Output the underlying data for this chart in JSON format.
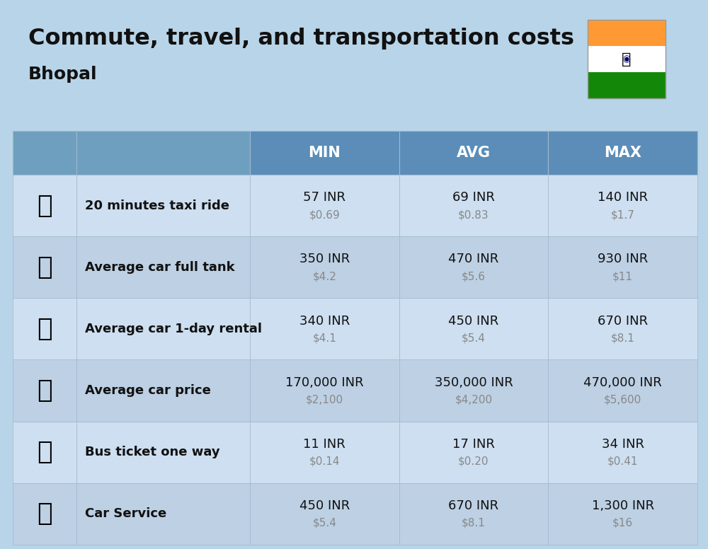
{
  "title": "Commute, travel, and transportation costs",
  "subtitle": "Bhopal",
  "bg_color": "#b8d4e8",
  "header_bg": "#5b8db8",
  "row_bg_even": "#cddff0",
  "row_bg_odd": "#bdd0e4",
  "separator_color": "#a0b8cc",
  "col_headers": [
    "MIN",
    "AVG",
    "MAX"
  ],
  "header_text_color": "#ffffff",
  "label_text_color": "#111111",
  "value_text_color": "#111111",
  "usd_text_color": "#888888",
  "rows": [
    {
      "label": "20 minutes taxi ride",
      "min_inr": "57 INR",
      "min_usd": "$0.69",
      "avg_inr": "69 INR",
      "avg_usd": "$0.83",
      "max_inr": "140 INR",
      "max_usd": "$1.7"
    },
    {
      "label": "Average car full tank",
      "min_inr": "350 INR",
      "min_usd": "$4.2",
      "avg_inr": "470 INR",
      "avg_usd": "$5.6",
      "max_inr": "930 INR",
      "max_usd": "$11"
    },
    {
      "label": "Average car 1-day rental",
      "min_inr": "340 INR",
      "min_usd": "$4.1",
      "avg_inr": "450 INR",
      "avg_usd": "$5.4",
      "max_inr": "670 INR",
      "max_usd": "$8.1"
    },
    {
      "label": "Average car price",
      "min_inr": "170,000 INR",
      "min_usd": "$2,100",
      "avg_inr": "350,000 INR",
      "avg_usd": "$4,200",
      "max_inr": "470,000 INR",
      "max_usd": "$5,600"
    },
    {
      "label": "Bus ticket one way",
      "min_inr": "11 INR",
      "min_usd": "$0.14",
      "avg_inr": "17 INR",
      "avg_usd": "$0.20",
      "max_inr": "34 INR",
      "max_usd": "$0.41"
    },
    {
      "label": "Car Service",
      "min_inr": "450 INR",
      "min_usd": "$5.4",
      "avg_inr": "670 INR",
      "avg_usd": "$8.1",
      "max_inr": "1,300 INR",
      "max_usd": "$16"
    }
  ]
}
